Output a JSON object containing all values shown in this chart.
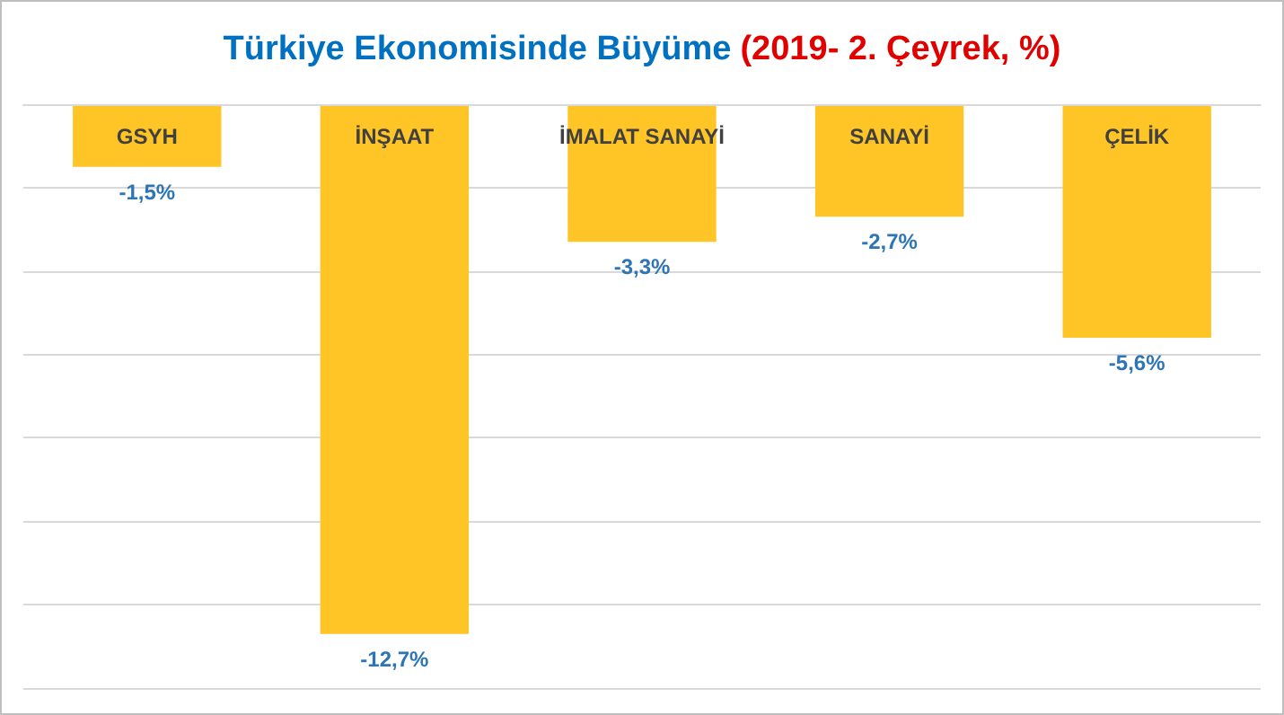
{
  "chart_data": {
    "type": "bar",
    "title": "Türkiye Ekonomisinde Büyüme",
    "subtitle": "(2019- 2. Çeyrek, %)",
    "categories": [
      "GSYH",
      "İNŞAAT",
      "İMALAT SANAYİ",
      "SANAYİ",
      "ÇELİK"
    ],
    "values": [
      -1.5,
      -12.7,
      -3.3,
      -2.7,
      -5.6
    ],
    "value_labels": [
      "-1,5%",
      "-12,7%",
      "-3,3%",
      "-2,7%",
      "-5,6%"
    ],
    "color": "#ffc425",
    "ylim": [
      -14,
      0
    ],
    "yticks": [
      {
        "value": -14,
        "label": null
      },
      {
        "value": -12,
        "label": null
      },
      {
        "value": -10,
        "label": null
      },
      {
        "value": -8,
        "label": null
      },
      {
        "value": -6,
        "label": null
      },
      {
        "value": -4,
        "label": null
      },
      {
        "value": -2,
        "label": null
      },
      {
        "value": 0,
        "label": null
      }
    ],
    "grid": "y",
    "tick_labels": "x"
  }
}
